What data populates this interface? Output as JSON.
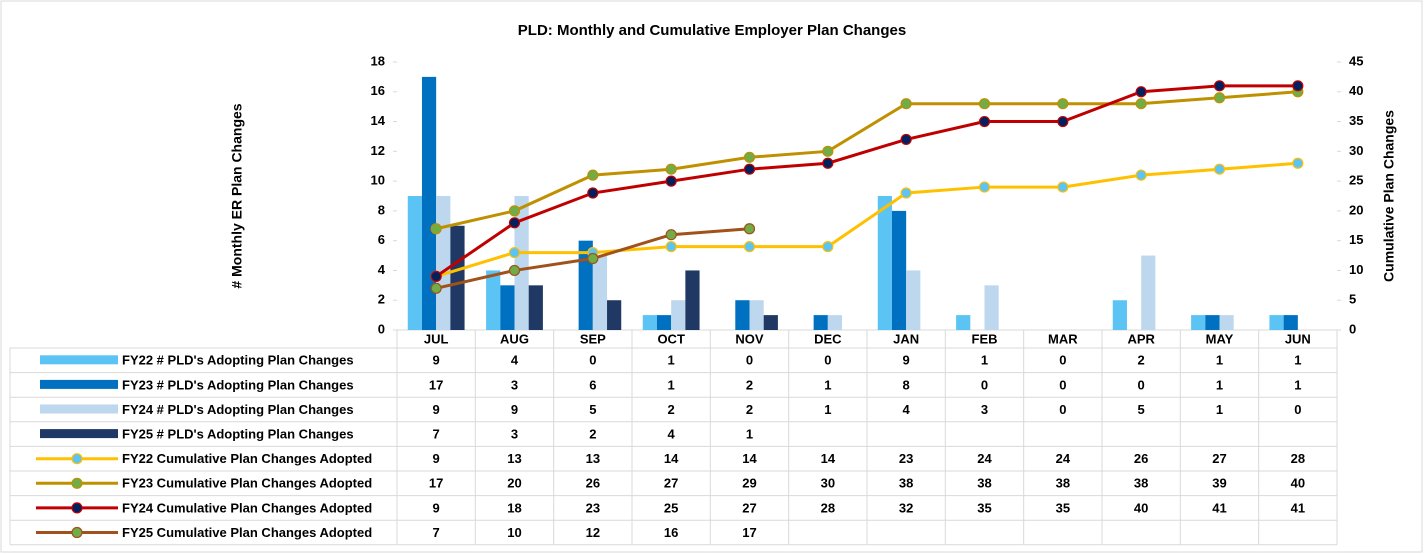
{
  "chart_data": {
    "type": "combo",
    "title": "PLD: Monthly and Cumulative Employer Plan Changes",
    "y_label": "# Monthly ER Plan Changes",
    "y2_label": "Cumulative Plan Changes",
    "categories": [
      "JUL",
      "AUG",
      "SEP",
      "OCT",
      "NOV",
      "DEC",
      "JAN",
      "FEB",
      "MAR",
      "APR",
      "MAY",
      "JUN"
    ],
    "ylim": [
      0,
      18
    ],
    "yticks": [
      0,
      2,
      4,
      6,
      8,
      10,
      12,
      14,
      16,
      18
    ],
    "y2lim": [
      0,
      45
    ],
    "y2ticks": [
      0,
      5,
      10,
      15,
      20,
      25,
      30,
      35,
      40,
      45
    ],
    "series": [
      {
        "name": "FY22 # PLD's Adopting Plan Changes",
        "type": "bar",
        "color": "#5bc4f5",
        "values": [
          9,
          4,
          0,
          1,
          0,
          0,
          9,
          1,
          0,
          2,
          1,
          1
        ]
      },
      {
        "name": "FY23 # PLD's Adopting Plan Changes",
        "type": "bar",
        "color": "#0070c0",
        "values": [
          17,
          3,
          6,
          1,
          2,
          1,
          8,
          0,
          0,
          0,
          1,
          1
        ]
      },
      {
        "name": "FY24 # PLD's Adopting Plan Changes",
        "type": "bar",
        "color": "#bdd7ee",
        "values": [
          9,
          9,
          5,
          2,
          2,
          1,
          4,
          3,
          0,
          5,
          1,
          0
        ]
      },
      {
        "name": "FY25 # PLD's Adopting Plan Changes",
        "type": "bar",
        "color": "#203864",
        "values": [
          7,
          3,
          2,
          4,
          1,
          null,
          null,
          null,
          null,
          null,
          null,
          null
        ]
      },
      {
        "name": "FY22 Cumulative Plan Changes Adopted",
        "type": "line",
        "axis": "y2",
        "color": "#ffc000",
        "marker_color": "#5bc4f5",
        "values": [
          9,
          13,
          13,
          14,
          14,
          14,
          23,
          24,
          24,
          26,
          27,
          28
        ]
      },
      {
        "name": "FY23 Cumulative Plan Changes Adopted",
        "type": "line",
        "axis": "y2",
        "color": "#bf9000",
        "marker_color": "#70ad47",
        "values": [
          17,
          20,
          26,
          27,
          29,
          30,
          38,
          38,
          38,
          38,
          39,
          40
        ]
      },
      {
        "name": "FY24 Cumulative Plan Changes Adopted",
        "type": "line",
        "axis": "y2",
        "color": "#c00000",
        "marker_color": "#002060",
        "values": [
          9,
          18,
          23,
          25,
          27,
          28,
          32,
          35,
          35,
          40,
          41,
          41
        ]
      },
      {
        "name": "FY25 Cumulative Plan Changes Adopted",
        "type": "line",
        "axis": "y2",
        "color": "#a0521a",
        "marker_color": "#70ad47",
        "values": [
          7,
          10,
          12,
          16,
          17,
          null,
          null,
          null,
          null,
          null,
          null,
          null
        ]
      }
    ]
  }
}
